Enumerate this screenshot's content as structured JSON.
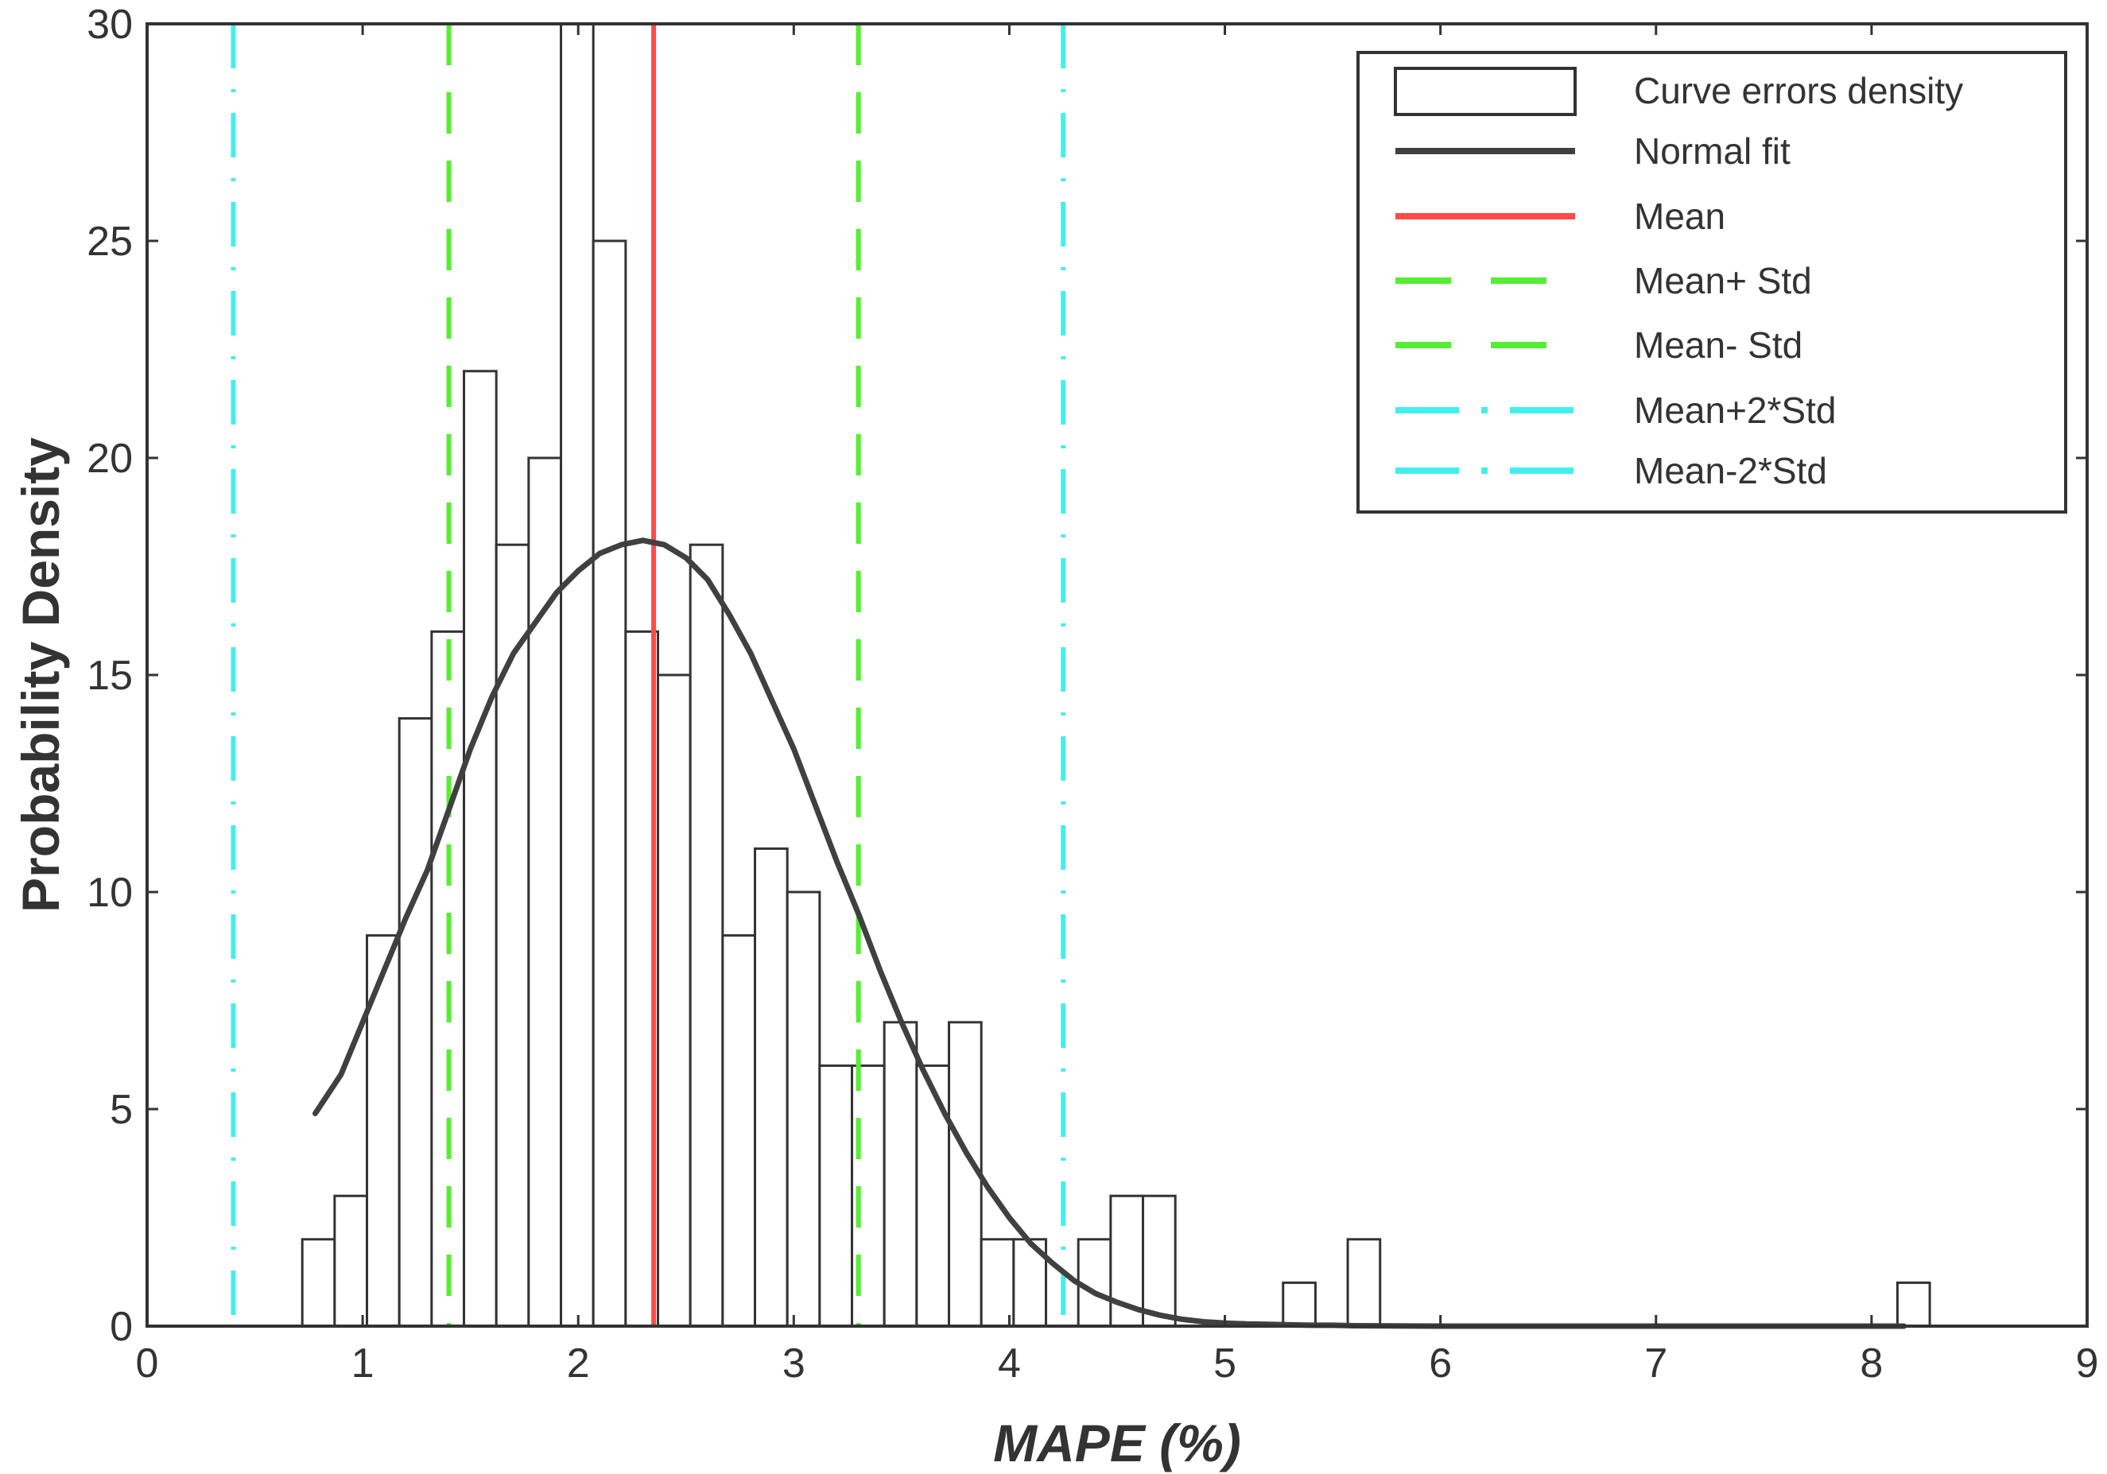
{
  "chart_data": {
    "type": "bar",
    "subtype": "histogram with normal fit and reference lines",
    "xlabel": "MAPE (%)",
    "ylabel": "Probability Density",
    "xlim": [
      0,
      9
    ],
    "ylim": [
      0,
      30
    ],
    "xticks": [
      0,
      1,
      2,
      3,
      4,
      5,
      6,
      7,
      8,
      9
    ],
    "yticks": [
      0,
      5,
      10,
      15,
      20,
      25,
      30
    ],
    "grid": false,
    "legend_position": "top-right",
    "bin_width": 0.15,
    "bins": [
      {
        "left": 0.72,
        "value": 2
      },
      {
        "left": 0.87,
        "value": 3
      },
      {
        "left": 1.02,
        "value": 9
      },
      {
        "left": 1.17,
        "value": 14
      },
      {
        "left": 1.32,
        "value": 16
      },
      {
        "left": 1.47,
        "value": 22
      },
      {
        "left": 1.62,
        "value": 18
      },
      {
        "left": 1.77,
        "value": 20
      },
      {
        "left": 1.92,
        "value": 30
      },
      {
        "left": 2.07,
        "value": 25
      },
      {
        "left": 2.22,
        "value": 16
      },
      {
        "left": 2.37,
        "value": 15
      },
      {
        "left": 2.52,
        "value": 18
      },
      {
        "left": 2.67,
        "value": 9
      },
      {
        "left": 2.82,
        "value": 11
      },
      {
        "left": 2.97,
        "value": 10
      },
      {
        "left": 3.12,
        "value": 6
      },
      {
        "left": 3.27,
        "value": 6
      },
      {
        "left": 3.42,
        "value": 7
      },
      {
        "left": 3.57,
        "value": 6
      },
      {
        "left": 3.72,
        "value": 7
      },
      {
        "left": 3.87,
        "value": 2
      },
      {
        "left": 4.02,
        "value": 2
      },
      {
        "left": 4.17,
        "value": 0
      },
      {
        "left": 4.32,
        "value": 2
      },
      {
        "left": 4.47,
        "value": 3
      },
      {
        "left": 4.62,
        "value": 3
      },
      {
        "left": 5.27,
        "value": 1
      },
      {
        "left": 5.57,
        "value": 2
      },
      {
        "left": 8.12,
        "value": 1
      }
    ],
    "normal_fit": {
      "x": [
        0.78,
        0.9,
        1.0,
        1.1,
        1.2,
        1.3,
        1.4,
        1.5,
        1.6,
        1.7,
        1.8,
        1.9,
        2.0,
        2.1,
        2.2,
        2.3,
        2.4,
        2.5,
        2.6,
        2.7,
        2.8,
        2.9,
        3.0,
        3.1,
        3.2,
        3.3,
        3.4,
        3.5,
        3.6,
        3.7,
        3.8,
        3.9,
        4.0,
        4.1,
        4.2,
        4.3,
        4.4,
        4.5,
        4.6,
        4.7,
        4.8,
        4.9,
        5.0,
        5.1,
        5.2,
        5.3,
        5.4,
        5.5,
        5.6,
        6.0,
        7.0,
        8.0,
        8.15
      ],
      "y": [
        4.9,
        5.8,
        7.0,
        8.2,
        9.4,
        10.5,
        11.9,
        13.3,
        14.5,
        15.5,
        16.2,
        16.9,
        17.4,
        17.8,
        18.0,
        18.1,
        18.0,
        17.7,
        17.2,
        16.4,
        15.5,
        14.4,
        13.3,
        12.0,
        10.7,
        9.5,
        8.2,
        7.0,
        5.9,
        4.9,
        4.0,
        3.2,
        2.5,
        1.9,
        1.45,
        1.05,
        0.75,
        0.55,
        0.38,
        0.25,
        0.16,
        0.1,
        0.07,
        0.05,
        0.04,
        0.03,
        0.02,
        0.02,
        0.01,
        0.0,
        0.0,
        0.0,
        0.0
      ]
    },
    "reference_lines": [
      {
        "name": "Mean",
        "x": 2.35,
        "color": "#ff4a4a",
        "style": "solid"
      },
      {
        "name": "Mean+Std",
        "x": 3.3,
        "color": "#55ee33",
        "style": "dashed"
      },
      {
        "name": "Mean-Std",
        "x": 1.4,
        "color": "#55ee33",
        "style": "dashed"
      },
      {
        "name": "Mean+2*Std",
        "x": 4.25,
        "color": "#44eeee",
        "style": "dashdot"
      },
      {
        "name": "Mean-2*Std",
        "x": 0.4,
        "color": "#44eeee",
        "style": "dashdot"
      }
    ],
    "legend": [
      {
        "label": "Curve errors density",
        "kind": "patch",
        "color": "#333333"
      },
      {
        "label": "Normal fit",
        "kind": "line",
        "color": "#404040",
        "style": "solid"
      },
      {
        "label": "Mean",
        "kind": "line",
        "color": "#ff4a4a",
        "style": "solid"
      },
      {
        "label": "Mean+ Std",
        "kind": "line",
        "color": "#55ee33",
        "style": "dashed"
      },
      {
        "label": "Mean- Std",
        "kind": "line",
        "color": "#55ee33",
        "style": "dashed"
      },
      {
        "label": "Mean+2*Std",
        "kind": "line",
        "color": "#44eeee",
        "style": "dashdot"
      },
      {
        "label": "Mean-2*Std",
        "kind": "line",
        "color": "#44eeee",
        "style": "dashdot"
      }
    ],
    "colors": {
      "axis": "#333333",
      "bar_fill": "#ffffff",
      "bar_edge": "#333333",
      "fit": "#404040"
    }
  }
}
